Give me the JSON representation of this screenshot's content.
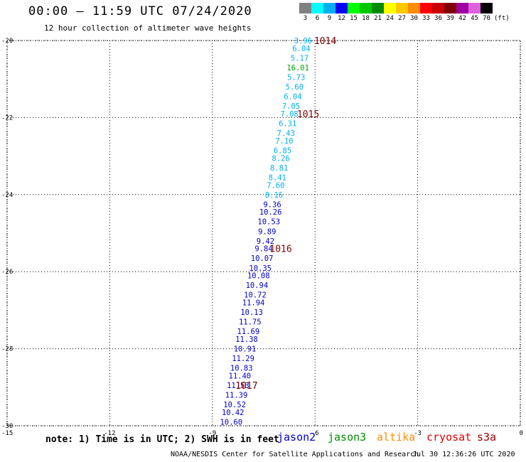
{
  "header": {
    "title": "00:00 – 11:59 UTC 07/24/2020",
    "subtitle": "12 hour collection of altimeter wave heights"
  },
  "legend": {
    "items": [
      {
        "label": "3",
        "color": "#808080"
      },
      {
        "label": "6",
        "color": "#00ffff"
      },
      {
        "label": "9",
        "color": "#00b0f0"
      },
      {
        "label": "12",
        "color": "#0000ff"
      },
      {
        "label": "15",
        "color": "#00ff00"
      },
      {
        "label": "18",
        "color": "#00c800"
      },
      {
        "label": "21",
        "color": "#008c00"
      },
      {
        "label": "24",
        "color": "#ffff00"
      },
      {
        "label": "27",
        "color": "#ffc800"
      },
      {
        "label": "30",
        "color": "#ff8c00"
      },
      {
        "label": "33",
        "color": "#ff0000"
      },
      {
        "label": "36",
        "color": "#c80000"
      },
      {
        "label": "39",
        "color": "#800000"
      },
      {
        "label": "42",
        "color": "#a000a0"
      },
      {
        "label": "45",
        "color": "#e060e0"
      },
      {
        "label": "70",
        "color": "#000000"
      }
    ],
    "units": "(ft)"
  },
  "map": {
    "lon_range": [
      -15,
      0
    ],
    "lat_range": [
      -30,
      -20
    ],
    "lon_ticks": [
      "-15",
      "-12",
      "-9",
      "-6",
      "-3",
      "0"
    ],
    "lat_ticks": [
      "-20",
      "-22",
      "-24",
      "-26",
      "-28",
      "-30"
    ],
    "track_label_color_by_height": [
      {
        "max_ft": 9,
        "color": "#00b0f0"
      },
      {
        "max_ft": 12,
        "color": "#0000c8"
      },
      {
        "max_ft": 18,
        "color": "#00a000"
      }
    ],
    "track": [
      {
        "lon": -6.35,
        "lat": -20.0,
        "swh": "3.96"
      },
      {
        "lon": -6.4,
        "lat": -20.2,
        "swh": "6.04"
      },
      {
        "lon": -6.45,
        "lat": -20.45,
        "swh": "5.17"
      },
      {
        "lon": -6.5,
        "lat": -20.7,
        "swh": "16.01"
      },
      {
        "lon": -6.55,
        "lat": -20.95,
        "swh": "5.73"
      },
      {
        "lon": -6.6,
        "lat": -21.2,
        "swh": "5.60"
      },
      {
        "lon": -6.65,
        "lat": -21.45,
        "swh": "6.04"
      },
      {
        "lon": -6.7,
        "lat": -21.7,
        "swh": "7.05"
      },
      {
        "lon": -6.75,
        "lat": -21.9,
        "swh": "7.08"
      },
      {
        "lon": -6.8,
        "lat": -22.15,
        "swh": "6.31"
      },
      {
        "lon": -6.85,
        "lat": -22.4,
        "swh": "7.43"
      },
      {
        "lon": -6.9,
        "lat": -22.6,
        "swh": "7.10"
      },
      {
        "lon": -6.95,
        "lat": -22.85,
        "swh": "6.85"
      },
      {
        "lon": -7.0,
        "lat": -23.05,
        "swh": "8.26"
      },
      {
        "lon": -7.05,
        "lat": -23.3,
        "swh": "8.81"
      },
      {
        "lon": -7.1,
        "lat": -23.55,
        "swh": "8.41"
      },
      {
        "lon": -7.15,
        "lat": -23.75,
        "swh": "7.60"
      },
      {
        "lon": -7.2,
        "lat": -24.0,
        "swh": "8.16"
      },
      {
        "lon": -7.25,
        "lat": -24.25,
        "swh": "9.36"
      },
      {
        "lon": -7.3,
        "lat": -24.45,
        "swh": "10.26"
      },
      {
        "lon": -7.35,
        "lat": -24.7,
        "swh": "10.53"
      },
      {
        "lon": -7.4,
        "lat": -24.95,
        "swh": "9.89"
      },
      {
        "lon": -7.45,
        "lat": -25.2,
        "swh": "9.42"
      },
      {
        "lon": -7.5,
        "lat": -25.4,
        "swh": "9.84"
      },
      {
        "lon": -7.55,
        "lat": -25.65,
        "swh": "10.07"
      },
      {
        "lon": -7.6,
        "lat": -25.9,
        "swh": "10.35"
      },
      {
        "lon": -7.65,
        "lat": -26.1,
        "swh": "10.08"
      },
      {
        "lon": -7.7,
        "lat": -26.35,
        "swh": "10.94"
      },
      {
        "lon": -7.75,
        "lat": -26.6,
        "swh": "10.72"
      },
      {
        "lon": -7.8,
        "lat": -26.8,
        "swh": "11.94"
      },
      {
        "lon": -7.85,
        "lat": -27.05,
        "swh": "10.13"
      },
      {
        "lon": -7.9,
        "lat": -27.3,
        "swh": "11.75"
      },
      {
        "lon": -7.95,
        "lat": -27.55,
        "swh": "11.69"
      },
      {
        "lon": -8.0,
        "lat": -27.75,
        "swh": "11.38"
      },
      {
        "lon": -8.05,
        "lat": -28.0,
        "swh": "10.91"
      },
      {
        "lon": -8.1,
        "lat": -28.25,
        "swh": "11.29"
      },
      {
        "lon": -8.15,
        "lat": -28.5,
        "swh": "10.83"
      },
      {
        "lon": -8.2,
        "lat": -28.7,
        "swh": "11.40"
      },
      {
        "lon": -8.25,
        "lat": -28.95,
        "swh": "11.53"
      },
      {
        "lon": -8.3,
        "lat": -29.2,
        "swh": "11.39"
      },
      {
        "lon": -8.35,
        "lat": -29.45,
        "swh": "10.52"
      },
      {
        "lon": -8.4,
        "lat": -29.65,
        "swh": "10.42"
      },
      {
        "lon": -8.45,
        "lat": -29.9,
        "swh": "10.60"
      }
    ],
    "pressure_labels": [
      {
        "lon": -5.7,
        "lat": -20.0,
        "text": "1014"
      },
      {
        "lon": -6.2,
        "lat": -21.9,
        "text": "1015"
      },
      {
        "lon": -7.0,
        "lat": -25.4,
        "text": "1016"
      },
      {
        "lon": -8.0,
        "lat": -28.95,
        "text": "1017"
      }
    ],
    "pressure_color": "#7a0000"
  },
  "footer": {
    "note": "note: 1) Time is in UTC; 2) SWH is in feet",
    "satellites": [
      {
        "label": "jason2",
        "color": "#0000c8"
      },
      {
        "label": "jason3",
        "color": "#008c00"
      },
      {
        "label": "altika",
        "color": "#ff8c00"
      },
      {
        "label": "cryosat",
        "color": "#e00000"
      },
      {
        "label": "s3a",
        "color": "#a00000"
      }
    ],
    "credit": "NOAA/NESDIS Center for Satellite Applications and Research",
    "timestamp": "Jul 30 12:36:26 UTC 2020"
  }
}
